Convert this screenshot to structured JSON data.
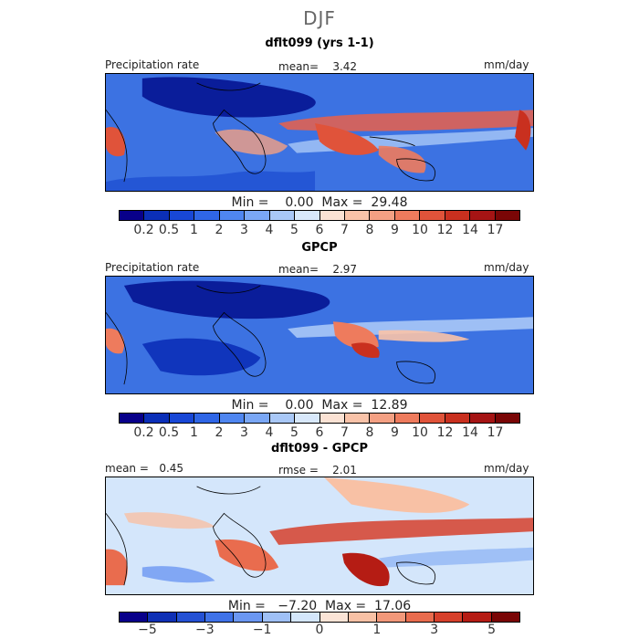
{
  "season": "DJF",
  "panels": [
    {
      "title": "dflt099 (yrs 1-1)",
      "left_label": "Precipitation rate",
      "center_label": "mean=    3.42",
      "units": "mm/day",
      "min_max": "Min =    0.00  Max =  29.48"
    },
    {
      "title": "GPCP",
      "left_label": "Precipitation rate",
      "center_label": "mean=    2.97",
      "units": "mm/day",
      "min_max": "Min =    0.00  Max =  12.89"
    },
    {
      "title": "dflt099 - GPCP",
      "left_label": "mean =   0.45",
      "center_label": "rmse =    2.01",
      "units": "mm/day",
      "min_max": "Min =   −7.20  Max =  17.06"
    }
  ],
  "colorbar_precip": {
    "colors": [
      "#08008a",
      "#0b2fb8",
      "#1847d6",
      "#2f66e6",
      "#4f86f0",
      "#7aa7f5",
      "#a9c8f7",
      "#d8e8fb",
      "#fbe2d4",
      "#f9c3a9",
      "#f4a083",
      "#ee7b5d",
      "#e0533a",
      "#c9301f",
      "#a51414",
      "#7a0606"
    ],
    "labels": [
      "0.2",
      "0.5",
      "1",
      "2",
      "3",
      "4",
      "5",
      "6",
      "7",
      "8",
      "9",
      "10",
      "12",
      "14",
      "17"
    ]
  },
  "colorbar_diff": {
    "colors": [
      "#08008a",
      "#0f30b5",
      "#2451d4",
      "#3f72e8",
      "#6b97f2",
      "#9fc0f6",
      "#d4e6fb",
      "#fbe4d6",
      "#f8c1a5",
      "#f2987a",
      "#e96c4e",
      "#d6402b",
      "#b51c14",
      "#7a0606"
    ],
    "labels": [
      "−5",
      "−3",
      "−1",
      "0",
      "1",
      "3",
      "5"
    ]
  }
}
